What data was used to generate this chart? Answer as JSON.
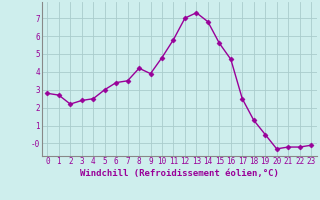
{
  "x": [
    0,
    1,
    2,
    3,
    4,
    5,
    6,
    7,
    8,
    9,
    10,
    11,
    12,
    13,
    14,
    15,
    16,
    17,
    18,
    19,
    20,
    21,
    22,
    23
  ],
  "y": [
    2.8,
    2.7,
    2.2,
    2.4,
    2.5,
    3.0,
    3.4,
    3.5,
    4.2,
    3.9,
    4.8,
    5.8,
    7.0,
    7.3,
    6.8,
    5.6,
    4.7,
    2.5,
    1.3,
    0.5,
    -0.3,
    -0.2,
    -0.2,
    -0.1
  ],
  "line_color": "#990099",
  "marker": "D",
  "marker_size": 2.5,
  "bg_color": "#ceeeed",
  "grid_color": "#aacccc",
  "xlabel": "Windchill (Refroidissement éolien,°C)",
  "xlabel_color": "#990099",
  "xlabel_fontsize": 6.5,
  "tick_label_color": "#990099",
  "tick_fontsize": 5.5,
  "yticks": [
    0,
    1,
    2,
    3,
    4,
    5,
    6,
    7
  ],
  "ytick_labels": [
    "-0",
    "1",
    "2",
    "3",
    "4",
    "5",
    "6",
    "7"
  ],
  "ylim": [
    -0.7,
    7.9
  ],
  "xlim": [
    -0.5,
    23.5
  ],
  "spine_color": "#888888",
  "lw": 1.0
}
